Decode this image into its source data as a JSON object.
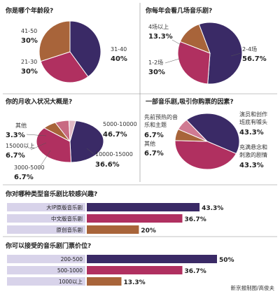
{
  "colors": {
    "purple": "#3a2a66",
    "crimson": "#b03060",
    "brown": "#a8643a",
    "light_purple": "#d8d3ea",
    "rule": "#666666"
  },
  "credit": "新京报制图/高俊夫",
  "chart_data": [
    {
      "type": "pie",
      "title": "你是哪个年龄段?",
      "slices": [
        {
          "label": "31-40",
          "value": 40,
          "display": "40%",
          "color": "#3a2a66"
        },
        {
          "label": "21-30",
          "value": 30,
          "display": "30%",
          "color": "#b03060"
        },
        {
          "label": "41-50",
          "value": 30,
          "display": "30%",
          "color": "#a8643a"
        }
      ]
    },
    {
      "type": "pie",
      "title": "你每年会看几场音乐剧?",
      "slices": [
        {
          "label": "2-4场",
          "value": 56.7,
          "display": "56.7%",
          "color": "#3a2a66"
        },
        {
          "label": "1-2场",
          "value": 30,
          "display": "30%",
          "color": "#b03060"
        },
        {
          "label": "4场以上",
          "value": 13.3,
          "display": "13.3%",
          "color": "#a8643a"
        }
      ]
    },
    {
      "type": "pie",
      "title": "你的月收入状况大概是?",
      "slices": [
        {
          "label": "5000-10000",
          "value": 46.7,
          "display": "46.7%",
          "color": "#3a2a66"
        },
        {
          "label": "10000-15000",
          "value": 36.6,
          "display": "36.6%",
          "color": "#b03060"
        },
        {
          "label": "3000-5000",
          "value": 6.7,
          "display": "6.7%",
          "color": "#a8643a"
        },
        {
          "label": "15000以上",
          "value": 6.7,
          "display": "6.7%",
          "color": "#c86a82"
        },
        {
          "label": "其他",
          "value": 3.3,
          "display": "3.3%",
          "color": "#e0b8c4"
        }
      ]
    },
    {
      "type": "pie",
      "title": "一部音乐剧,吸引你购票的因素?",
      "slices": [
        {
          "label": "演员和创作班底有噱头",
          "value": 43.3,
          "display": "43.3%",
          "color": "#3a2a66"
        },
        {
          "label": "充满悬念和刺激的剧情",
          "value": 43.3,
          "display": "43.3%",
          "color": "#b03060"
        },
        {
          "label": "其他",
          "value": 6.7,
          "display": "6.7%",
          "color": "#a8643a"
        },
        {
          "label": "先前预热的音乐和主题",
          "value": 6.7,
          "display": "6.7%",
          "color": "#d07a92"
        }
      ]
    },
    {
      "type": "bar",
      "title": "你对哪种类型音乐剧比较感兴趣?",
      "xlim": [
        0,
        50
      ],
      "categories": [
        "大IP原版音乐剧",
        "中文版音乐剧",
        "原创音乐剧"
      ],
      "values": [
        43.3,
        36.7,
        20
      ],
      "display": [
        "43.3%",
        "36.7%",
        "20%"
      ],
      "colors": [
        "#3a2a66",
        "#b03060",
        "#a8643a"
      ]
    },
    {
      "type": "bar",
      "title": "你可以接受的音乐剧门票价位?",
      "xlim": [
        0,
        50
      ],
      "categories": [
        "200-500",
        "500-1000",
        "1000以上"
      ],
      "values": [
        50,
        36.7,
        13.3
      ],
      "display": [
        "50%",
        "36.7%",
        "13.3%"
      ],
      "colors": [
        "#3a2a66",
        "#b03060",
        "#a8643a"
      ]
    }
  ]
}
